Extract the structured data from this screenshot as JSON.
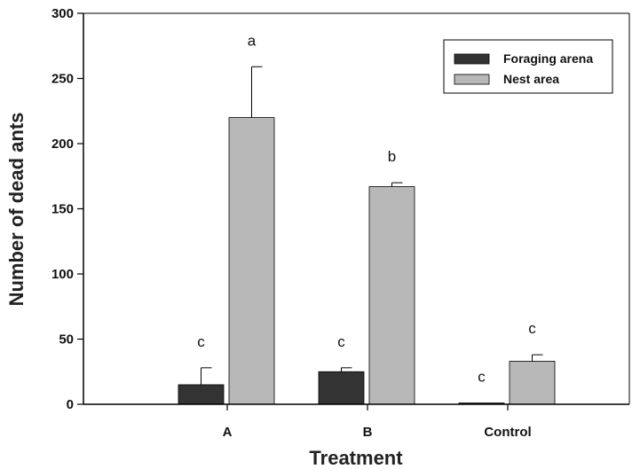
{
  "chart_data": {
    "type": "bar",
    "title": "",
    "xlabel": "Treatment",
    "ylabel": "Number of dead ants",
    "categories": [
      "A",
      "B",
      "Control"
    ],
    "ylim": [
      0,
      300
    ],
    "yticks": [
      0,
      50,
      100,
      150,
      200,
      250,
      300
    ],
    "series": [
      {
        "name": "Foraging arena",
        "color": "#333333",
        "values": [
          15,
          25,
          1
        ],
        "errors": [
          13,
          3,
          0
        ],
        "labels": [
          "c",
          "c",
          "c"
        ]
      },
      {
        "name": "Nest area",
        "color": "#b8b8b8",
        "values": [
          220,
          167,
          33
        ],
        "errors": [
          39,
          3,
          5
        ],
        "labels": [
          "a",
          "b",
          "c"
        ]
      }
    ],
    "legend": {
      "position": "top-right"
    },
    "grid": false
  }
}
